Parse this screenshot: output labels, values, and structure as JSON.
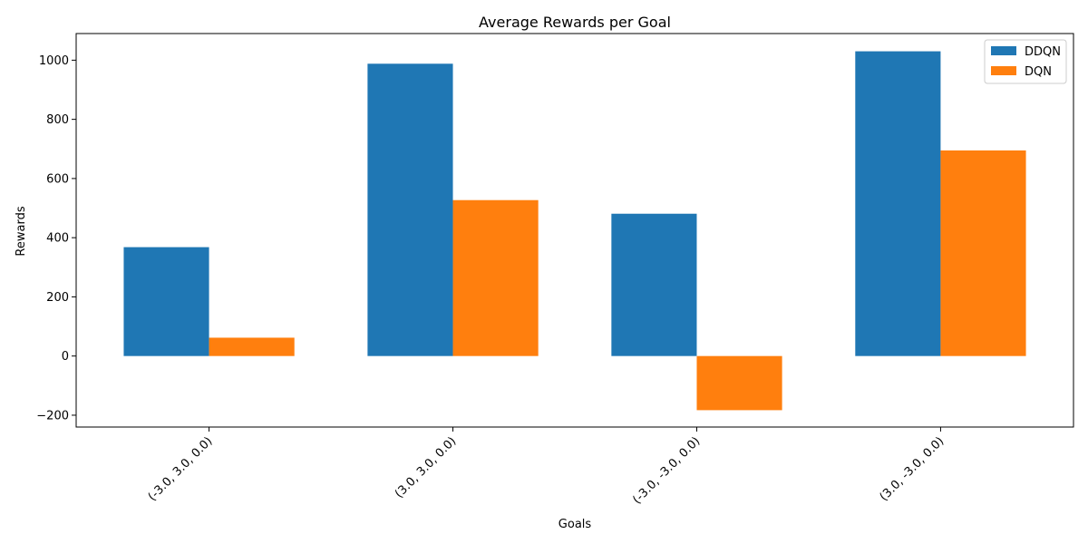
{
  "chart_data": {
    "type": "bar",
    "title": "Average Rewards per Goal",
    "xlabel": "Goals",
    "ylabel": "Rewards",
    "categories": [
      "(-3.0, 3.0, 0.0)",
      "(3.0, 3.0, 0.0)",
      "(-3.0, -3.0, 0.0)",
      "(3.0, -3.0, 0.0)"
    ],
    "series": [
      {
        "name": "DDQN",
        "color": "#1f77b4",
        "values": [
          368,
          988,
          481,
          1030
        ]
      },
      {
        "name": "DQN",
        "color": "#ff7f0e",
        "values": [
          62,
          527,
          -183,
          695
        ]
      }
    ],
    "ylim": [
      -240,
      1090
    ],
    "yticks": [
      -200,
      0,
      200,
      400,
      600,
      800,
      1000
    ],
    "grid": false,
    "legend_position": "top-right"
  }
}
